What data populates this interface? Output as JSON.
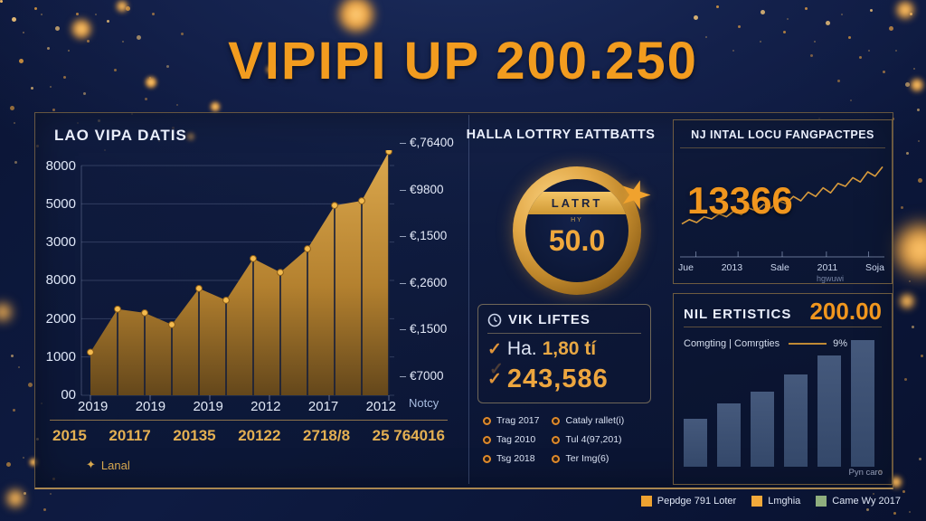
{
  "title": "VIPIPI UP 200.250",
  "colors": {
    "accent_orange": "#f29c1f",
    "gold": "#e3af52",
    "navy_background": "#0c1736",
    "panel_border": "#b08a4a",
    "bar_blue": "#3c5170",
    "legend_green": "#8fae7e"
  },
  "icons": {
    "check": "✓",
    "sparkle": "✦",
    "star": "★"
  },
  "left_panel": {
    "header": "LAO VIPA DATIS",
    "y_labels_left": [
      "8000",
      "5000",
      "3000",
      "8000",
      "2000",
      "1000",
      "00"
    ],
    "y_labels_right": [
      "€,76400",
      "€9800",
      "€,1500",
      "€,2600",
      "€,1500",
      "€7000"
    ],
    "right_axis_footer": "Notcy",
    "x_labels": [
      "2019",
      "2019",
      "2019",
      "2012",
      "2017",
      "2012"
    ],
    "summary_values": [
      "2015",
      "20117",
      "20135",
      "20122",
      "2718/8",
      "25 764016"
    ],
    "legend_label": "Lanal"
  },
  "middle_panel": {
    "header": "HALLA LOTTRY EATTBATTS",
    "badge": {
      "banner": "LATRT",
      "subtext": "HY",
      "value": "50.0"
    },
    "stats_box": {
      "title": "VIK LIFTES",
      "row1_prefix": "Ha.",
      "row1_value": "1,80 tí",
      "row2_value": "243,586"
    },
    "bullets_col1": [
      "Trag 2017",
      "Tag 2010",
      "Tsg 2018"
    ],
    "bullets_col2": [
      "Cataly rallet(i)",
      "Tul 4(97,201)",
      "Ter Img(6)"
    ]
  },
  "right_top_panel": {
    "header": "NJ INTAL LOCU FANGPACTPES",
    "value": "13366",
    "x_labels": [
      "Jue",
      "2013",
      "Sale",
      "2011",
      "Soja"
    ],
    "axis_note": "hgwuwi"
  },
  "right_bottom_panel": {
    "header": "NIL ERTISTICS",
    "value": "200.00",
    "subtitle": "Comgting | Comrgties",
    "subtitle_value": "9%",
    "footnote": "Pyn caro"
  },
  "footer_legend": [
    {
      "label": "Pepdge 791 Loter",
      "color": "#eda231"
    },
    {
      "label": "Lmghia",
      "color": "#f2a93b"
    },
    {
      "label": "Came Wy 2017",
      "color": "#8fae7e"
    }
  ],
  "chart_data": [
    {
      "type": "area",
      "title": "LAO VIPA DATIS",
      "x_tick_labels": [
        "2019",
        "2019",
        "2019",
        "2012",
        "2017",
        "2012"
      ],
      "y_tick_labels_left": [
        "8000",
        "5000",
        "3000",
        "8000",
        "2000",
        "1000",
        "00"
      ],
      "y_tick_labels_right": [
        "€,76400",
        "€9800",
        "€,1500",
        "€,2600",
        "€,1500",
        "€7000"
      ],
      "values": [
        1500,
        3000,
        2870,
        2460,
        3720,
        3310,
        4760,
        4280,
        5100,
        6610,
        6770,
        8570
      ],
      "ylim": [
        0,
        8800
      ],
      "grid": true,
      "area_color": "#c08b35",
      "marker_color": "#f4bb4e",
      "legend": [
        "Lanal"
      ],
      "legend_position": "bottom-left"
    },
    {
      "type": "line",
      "title": "NJ INTAL LOCU FANGPACTPES",
      "annotation": "13366",
      "x_tick_labels": [
        "Jue",
        "2013",
        "Sale",
        "2011",
        "Soja"
      ],
      "values": [
        18,
        24,
        20,
        28,
        25,
        32,
        28,
        36,
        31,
        40,
        36,
        45,
        40,
        50,
        46,
        56,
        50,
        62,
        56,
        68,
        61,
        74,
        70,
        82,
        76,
        90,
        84,
        97
      ],
      "ylim": [
        0,
        100
      ],
      "grid": false,
      "line_color": "#d99b3c"
    },
    {
      "type": "bar",
      "title": "NIL ERTISTICS",
      "categories": [
        "",
        "",
        "",
        "",
        "",
        ""
      ],
      "values": [
        38,
        50,
        59,
        73,
        88,
        100
      ],
      "ylim": [
        0,
        100
      ],
      "grid": false,
      "bar_color": "#3c5170",
      "annotation": "9%"
    }
  ]
}
